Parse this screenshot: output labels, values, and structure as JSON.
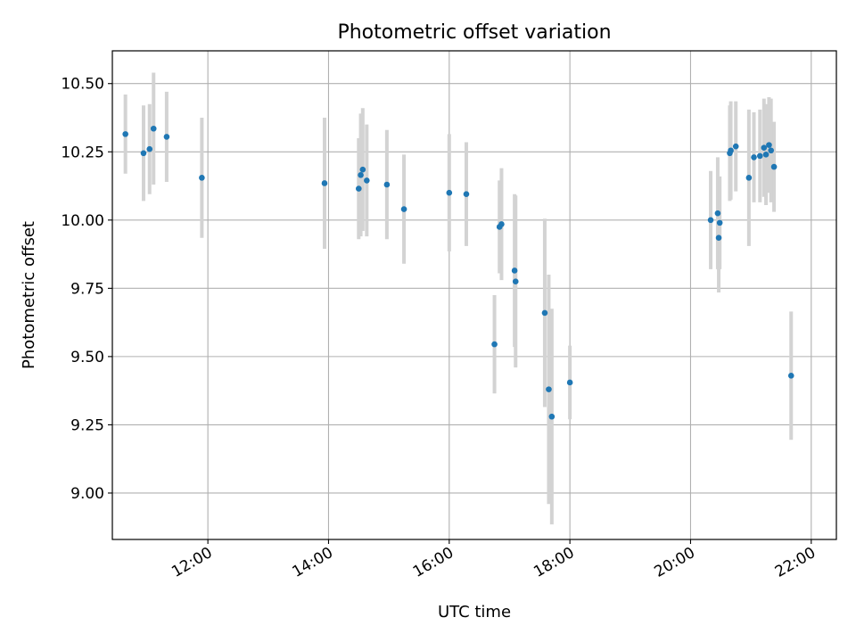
{
  "chart_data": {
    "type": "scatter",
    "title": "Photometric offset variation",
    "xlabel": "UTC time",
    "ylabel": "Photometric offset",
    "grid": true,
    "legend": "none",
    "xlim": [
      "10:25",
      "22:25"
    ],
    "ylim": [
      8.83,
      10.62
    ],
    "x_ticks": [
      "12:00",
      "14:00",
      "16:00",
      "18:00",
      "20:00",
      "22:00"
    ],
    "y_ticks": [
      "9.00",
      "9.25",
      "9.50",
      "9.75",
      "10.00",
      "10.25",
      "10.50"
    ],
    "colors": {
      "point": "#1f77b4",
      "errorbar": "#d3d3d3",
      "grid": "#b0b0b0"
    },
    "points": [
      {
        "x": "10:38",
        "y": 10.315,
        "yerr": 0.145
      },
      {
        "x": "10:56",
        "y": 10.245,
        "yerr": 0.175
      },
      {
        "x": "11:02",
        "y": 10.26,
        "yerr": 0.165
      },
      {
        "x": "11:06",
        "y": 10.335,
        "yerr": 0.205
      },
      {
        "x": "11:19",
        "y": 10.305,
        "yerr": 0.165
      },
      {
        "x": "11:54",
        "y": 10.155,
        "yerr": 0.22
      },
      {
        "x": "13:56",
        "y": 10.135,
        "yerr": 0.24
      },
      {
        "x": "14:30",
        "y": 10.115,
        "yerr": 0.185
      },
      {
        "x": "14:32",
        "y": 10.165,
        "yerr": 0.225
      },
      {
        "x": "14:34",
        "y": 10.185,
        "yerr": 0.225
      },
      {
        "x": "14:38",
        "y": 10.145,
        "yerr": 0.205
      },
      {
        "x": "14:58",
        "y": 10.13,
        "yerr": 0.2
      },
      {
        "x": "15:15",
        "y": 10.04,
        "yerr": 0.2
      },
      {
        "x": "16:00",
        "y": 10.1,
        "yerr": 0.215
      },
      {
        "x": "16:17",
        "y": 10.095,
        "yerr": 0.19
      },
      {
        "x": "16:45",
        "y": 9.545,
        "yerr": 0.18
      },
      {
        "x": "16:50",
        "y": 9.975,
        "yerr": 0.17
      },
      {
        "x": "16:52",
        "y": 9.985,
        "yerr": 0.205
      },
      {
        "x": "17:05",
        "y": 9.815,
        "yerr": 0.28
      },
      {
        "x": "17:06",
        "y": 9.775,
        "yerr": 0.315
      },
      {
        "x": "17:35",
        "y": 9.66,
        "yerr": 0.345
      },
      {
        "x": "17:39",
        "y": 9.38,
        "yerr": 0.42
      },
      {
        "x": "17:42",
        "y": 9.28,
        "yerr": 0.395
      },
      {
        "x": "18:00",
        "y": 9.405,
        "yerr": 0.135
      },
      {
        "x": "20:20",
        "y": 10.0,
        "yerr": 0.18
      },
      {
        "x": "20:27",
        "y": 10.025,
        "yerr": 0.205
      },
      {
        "x": "20:28",
        "y": 9.935,
        "yerr": 0.2
      },
      {
        "x": "20:29",
        "y": 9.99,
        "yerr": 0.17
      },
      {
        "x": "20:39",
        "y": 10.245,
        "yerr": 0.175
      },
      {
        "x": "20:40",
        "y": 10.255,
        "yerr": 0.18
      },
      {
        "x": "20:45",
        "y": 10.27,
        "yerr": 0.165
      },
      {
        "x": "20:58",
        "y": 10.155,
        "yerr": 0.25
      },
      {
        "x": "21:03",
        "y": 10.23,
        "yerr": 0.165
      },
      {
        "x": "21:09",
        "y": 10.235,
        "yerr": 0.17
      },
      {
        "x": "21:13",
        "y": 10.265,
        "yerr": 0.18
      },
      {
        "x": "21:15",
        "y": 10.24,
        "yerr": 0.185
      },
      {
        "x": "21:18",
        "y": 10.275,
        "yerr": 0.175
      },
      {
        "x": "21:20",
        "y": 10.255,
        "yerr": 0.19
      },
      {
        "x": "21:23",
        "y": 10.195,
        "yerr": 0.165
      },
      {
        "x": "21:40",
        "y": 9.43,
        "yerr": 0.235
      }
    ]
  }
}
